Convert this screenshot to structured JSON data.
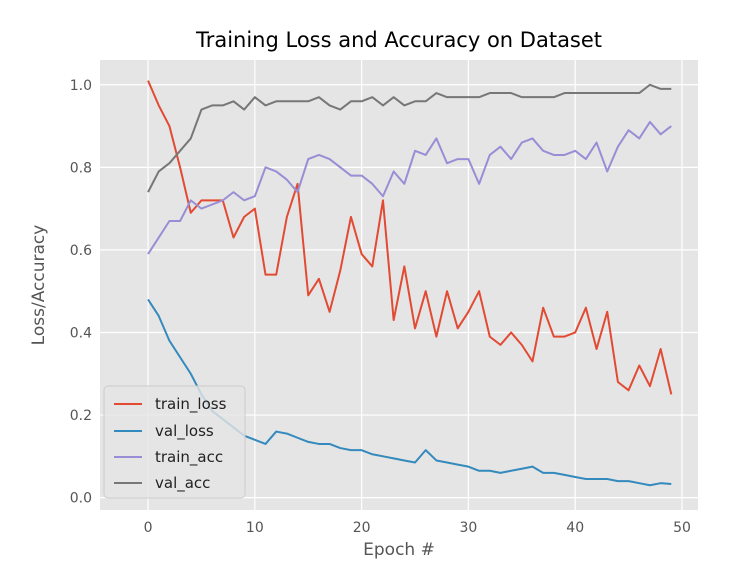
{
  "chart_data": {
    "type": "line",
    "title": "Training Loss and Accuracy on Dataset",
    "xlabel": "Epoch #",
    "ylabel": "Loss/Accuracy",
    "xlim": [
      -4.5,
      51.5
    ],
    "ylim": [
      -0.03,
      1.06
    ],
    "xticks": [
      0,
      10,
      20,
      30,
      40,
      50
    ],
    "yticks": [
      0.0,
      0.2,
      0.4,
      0.6,
      0.8,
      1.0
    ],
    "xtick_labels": [
      "0",
      "10",
      "20",
      "30",
      "40",
      "50"
    ],
    "ytick_labels": [
      "0.0",
      "0.2",
      "0.4",
      "0.6",
      "0.8",
      "1.0"
    ],
    "grid": true,
    "legend_position": "lower-left",
    "x": [
      0,
      1,
      2,
      3,
      4,
      5,
      6,
      7,
      8,
      9,
      10,
      11,
      12,
      13,
      14,
      15,
      16,
      17,
      18,
      19,
      20,
      21,
      22,
      23,
      24,
      25,
      26,
      27,
      28,
      29,
      30,
      31,
      32,
      33,
      34,
      35,
      36,
      37,
      38,
      39,
      40,
      41,
      42,
      43,
      44,
      45,
      46,
      47,
      48,
      49
    ],
    "series": [
      {
        "name": "train_loss",
        "color": "#E24A33",
        "values": [
          1.01,
          0.95,
          0.9,
          0.8,
          0.69,
          0.72,
          0.72,
          0.72,
          0.63,
          0.68,
          0.7,
          0.54,
          0.54,
          0.68,
          0.76,
          0.49,
          0.53,
          0.45,
          0.55,
          0.68,
          0.59,
          0.56,
          0.72,
          0.43,
          0.56,
          0.41,
          0.5,
          0.39,
          0.5,
          0.41,
          0.45,
          0.5,
          0.39,
          0.37,
          0.4,
          0.37,
          0.33,
          0.46,
          0.39,
          0.39,
          0.4,
          0.46,
          0.36,
          0.45,
          0.28,
          0.26,
          0.32,
          0.27,
          0.36,
          0.25
        ]
      },
      {
        "name": "val_loss",
        "color": "#348ABD",
        "values": [
          0.48,
          0.44,
          0.38,
          0.34,
          0.3,
          0.25,
          0.21,
          0.19,
          0.17,
          0.15,
          0.14,
          0.13,
          0.16,
          0.155,
          0.145,
          0.135,
          0.13,
          0.13,
          0.12,
          0.115,
          0.115,
          0.105,
          0.1,
          0.095,
          0.09,
          0.085,
          0.115,
          0.09,
          0.085,
          0.08,
          0.075,
          0.065,
          0.065,
          0.06,
          0.065,
          0.07,
          0.075,
          0.06,
          0.06,
          0.055,
          0.05,
          0.045,
          0.045,
          0.045,
          0.04,
          0.04,
          0.035,
          0.03,
          0.035,
          0.033
        ]
      },
      {
        "name": "train_acc",
        "color": "#988ED5",
        "values": [
          0.59,
          0.63,
          0.67,
          0.67,
          0.72,
          0.7,
          0.71,
          0.72,
          0.74,
          0.72,
          0.73,
          0.8,
          0.79,
          0.77,
          0.74,
          0.82,
          0.83,
          0.82,
          0.8,
          0.78,
          0.78,
          0.76,
          0.73,
          0.79,
          0.76,
          0.84,
          0.83,
          0.87,
          0.81,
          0.82,
          0.82,
          0.76,
          0.83,
          0.85,
          0.82,
          0.86,
          0.87,
          0.84,
          0.83,
          0.83,
          0.84,
          0.82,
          0.86,
          0.79,
          0.85,
          0.89,
          0.87,
          0.91,
          0.88,
          0.9
        ]
      },
      {
        "name": "val_acc",
        "color": "#777777",
        "values": [
          0.74,
          0.79,
          0.81,
          0.84,
          0.87,
          0.94,
          0.95,
          0.95,
          0.96,
          0.94,
          0.97,
          0.95,
          0.96,
          0.96,
          0.96,
          0.96,
          0.97,
          0.95,
          0.94,
          0.96,
          0.96,
          0.97,
          0.95,
          0.97,
          0.95,
          0.96,
          0.96,
          0.98,
          0.97,
          0.97,
          0.97,
          0.97,
          0.98,
          0.98,
          0.98,
          0.97,
          0.97,
          0.97,
          0.97,
          0.98,
          0.98,
          0.98,
          0.98,
          0.98,
          0.98,
          0.98,
          0.98,
          1.0,
          0.99,
          0.99
        ]
      }
    ]
  }
}
